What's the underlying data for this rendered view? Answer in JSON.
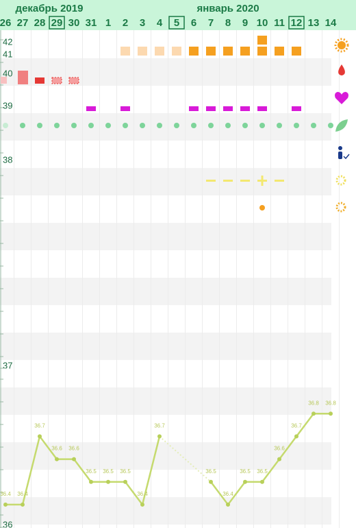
{
  "chart_data": {
    "type": "line",
    "month_labels": [
      "декабрь 2019",
      "январь 2020"
    ],
    "categories": [
      "26",
      "27",
      "28",
      "29",
      "30",
      "31",
      "1",
      "2",
      "3",
      "4",
      "5",
      "6",
      "7",
      "8",
      "9",
      "10",
      "11",
      "12",
      "13",
      "14"
    ],
    "upper_axis_labels": [
      "42",
      "41",
      "40",
      "39",
      "38"
    ],
    "series": [
      {
        "name": "temperature",
        "color": "#c5da6e",
        "values": [
          36.4,
          36.4,
          36.7,
          36.6,
          36.6,
          36.5,
          36.5,
          36.5,
          36.4,
          36.7,
          null,
          null,
          36.5,
          36.4,
          36.5,
          36.5,
          36.6,
          36.7,
          36.8,
          36.8
        ]
      }
    ],
    "ylim": [
      36.3,
      37.0
    ],
    "yticks": [
      {
        "value": 36.3,
        "label": "36"
      },
      37
    ]
  }
}
